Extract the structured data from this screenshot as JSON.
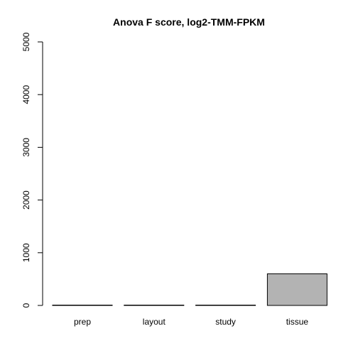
{
  "chart_data": {
    "type": "bar",
    "title": "Anova F score, log2-TMM-FPKM",
    "xlabel": "",
    "ylabel": "",
    "categories": [
      "prep",
      "layout",
      "study",
      "tissue"
    ],
    "values": [
      2,
      2,
      2,
      600
    ],
    "ylim": [
      0,
      5000
    ],
    "y_ticks": [
      0,
      1000,
      2000,
      3000,
      4000,
      5000
    ],
    "y_tick_labels": [
      "0",
      "1000",
      "2000",
      "3000",
      "4000",
      "5000"
    ],
    "grid": false,
    "legend": "none",
    "bar_color": "#b3b3b3",
    "bar_border_color": "#000000"
  }
}
